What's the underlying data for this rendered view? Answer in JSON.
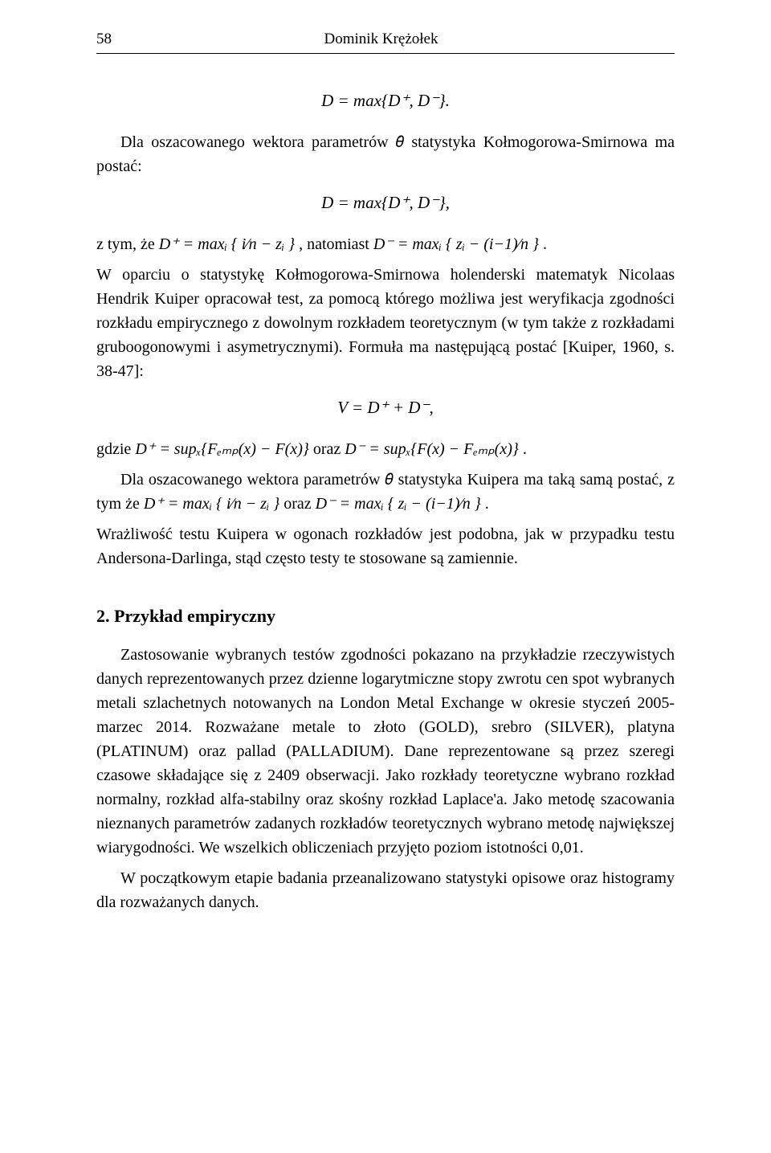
{
  "header": {
    "page_number": "58",
    "author": "Dominik Krężołek"
  },
  "colors": {
    "text": "#000000",
    "background": "#ffffff",
    "rule": "#000000"
  },
  "typography": {
    "body_family": "Times New Roman",
    "body_size_pt": 12,
    "heading_size_pt": 13,
    "heading_weight": "bold"
  },
  "formulas": {
    "f1": "D = max{D⁺, D⁻}.",
    "f2": "D = max{D⁺, D⁻},",
    "f3": "V = D⁺ + D⁻,"
  },
  "body": {
    "p1": "Dla oszacowanego wektora parametrów 𝜃̂ statystyka Kołmogorowa-Smirnowa ma postać:",
    "p2_a": "z tym, że ",
    "p2_m1": "D⁺ = maxᵢ { i⁄n − zᵢ }",
    "p2_b": ", natomiast ",
    "p2_m2": "D⁻ = maxᵢ { zᵢ − (i−1)⁄n }",
    "p2_c": ".",
    "p3": "W oparciu o statystykę Kołmogorowa-Smirnowa holenderski matematyk Nicolaas Hendrik Kuiper opracował test, za pomocą którego możliwa jest weryfikacja zgodności rozkładu empirycznego z dowolnym rozkładem teoretycznym (w tym także z rozkładami gruboogonowymi i asymetrycznymi). Formuła ma następującą postać [Kuiper, 1960, s. 38-47]:",
    "p4_a": "gdzie ",
    "p4_m1": "D⁺ = supₓ{Fₑₘₚ(x) − F(x)}",
    "p4_b": " oraz ",
    "p4_m2": "D⁻ = supₓ{F(x) − Fₑₘₚ(x)}",
    "p4_c": ".",
    "p5_a": "Dla oszacowanego wektora parametrów 𝜃̂ statystyka Kuipera ma taką samą postać, z tym że ",
    "p5_m1": "D⁺ = maxᵢ { i⁄n − zᵢ }",
    "p5_b": " oraz ",
    "p5_m2": "D⁻ = maxᵢ { zᵢ − (i−1)⁄n }",
    "p5_c": ".",
    "p6": "Wrażliwość testu Kuipera w ogonach rozkładów jest podobna, jak w przypadku testu Andersona-Darlinga, stąd często testy te stosowane są zamiennie."
  },
  "section": {
    "heading": "2. Przykład empiryczny",
    "p1": "Zastosowanie wybranych testów zgodności pokazano na przykładzie rzeczywistych danych reprezentowanych przez dzienne logarytmiczne stopy zwrotu cen spot wybranych metali szlachetnych notowanych na London Metal Exchange w okresie styczeń 2005-marzec 2014. Rozważane metale to złoto (GOLD), srebro (SILVER), platyna (PLATINUM) oraz pallad (PALLADIUM). Dane reprezentowane są przez szeregi czasowe składające się z 2409 obserwacji. Jako rozkłady teoretyczne wybrano rozkład normalny, rozkład alfa-stabilny oraz skośny rozkład Laplace'a. Jako metodę szacowania nieznanych parametrów zadanych rozkładów teoretycznych wybrano metodę największej wiarygodności. We wszelkich obliczeniach przyjęto poziom istotności 0,01.",
    "p2": "W początkowym etapie badania przeanalizowano statystyki opisowe oraz histogramy dla rozważanych danych."
  }
}
